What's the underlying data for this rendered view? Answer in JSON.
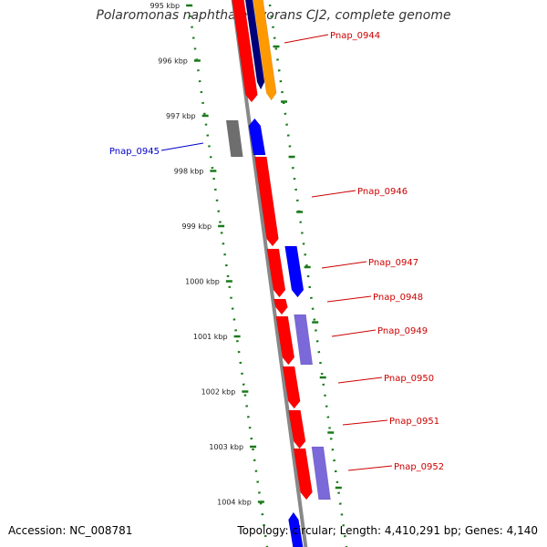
{
  "title": "Polaromonas naphthalenivorans CJ2, complete genome",
  "footer": {
    "accession": "Accession: NC_008781",
    "summary": "Topology: circular; Length: 4,410,291 bp; Genes: 4,140"
  },
  "colors": {
    "backbone": "#888888",
    "ticks": "#1a7a1a",
    "red": "#ff0000",
    "blue": "#0000ff",
    "navy": "#00007a",
    "orange": "#ff9900",
    "lavender": "#7b68d9",
    "gray": "#6e6e6e",
    "label_red": "#cc0000",
    "label_blue": "#0000cc"
  },
  "ruler": {
    "unit": "kbp",
    "labels": [
      "995 kbp",
      "996 kbp",
      "997 kbp",
      "998 kbp",
      "999 kbp",
      "1000 kbp",
      "1001 kbp",
      "1002 kbp",
      "1003 kbp",
      "1004 kbp"
    ]
  },
  "labeled_genes": [
    {
      "name": "Pnap_0944",
      "strand": "forward"
    },
    {
      "name": "Pnap_0945",
      "strand": "reverse"
    },
    {
      "name": "Pnap_0946",
      "strand": "forward"
    },
    {
      "name": "Pnap_0947",
      "strand": "forward"
    },
    {
      "name": "Pnap_0948",
      "strand": "forward"
    },
    {
      "name": "Pnap_0949",
      "strand": "forward"
    },
    {
      "name": "Pnap_0950",
      "strand": "forward"
    },
    {
      "name": "Pnap_0951",
      "strand": "forward"
    },
    {
      "name": "Pnap_0952",
      "strand": "forward"
    }
  ]
}
